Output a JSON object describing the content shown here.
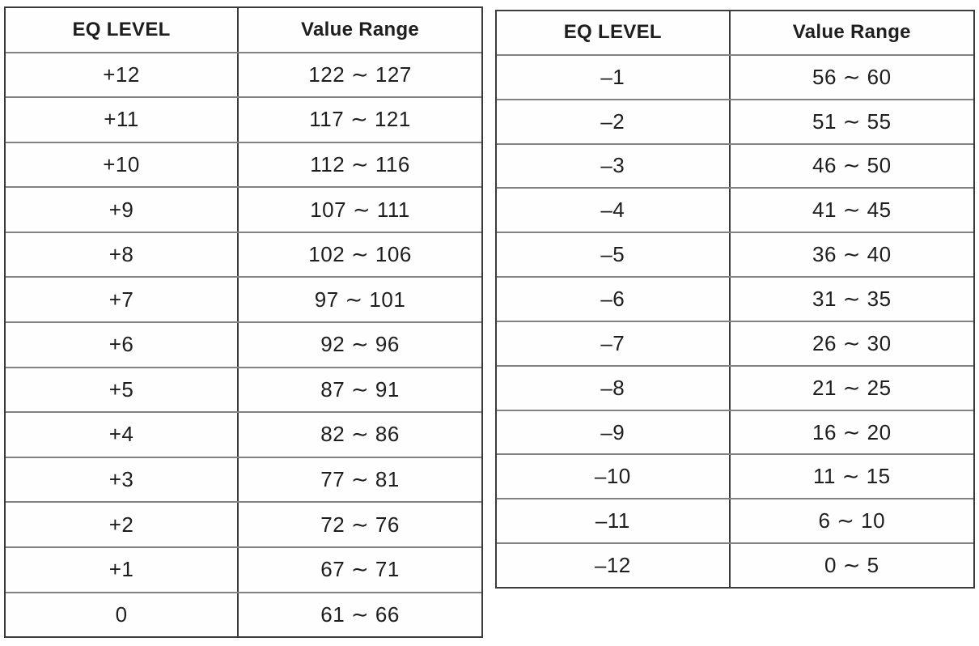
{
  "document": {
    "kind": "eq-level-value-range-tables"
  },
  "colors": {
    "background": "#ffffff",
    "outer_border": "#3c3c3c",
    "row_line": "#828282",
    "text": "#1e1e1e"
  },
  "tables": {
    "left": {
      "headers": {
        "level": "EQ LEVEL",
        "range": "Value Range"
      },
      "rows": [
        {
          "level": "+12",
          "range": "122 ∼ 127"
        },
        {
          "level": "+11",
          "range": "117 ∼ 121"
        },
        {
          "level": "+10",
          "range": "112 ∼ 116"
        },
        {
          "level": "+9",
          "range": "107 ∼ 111"
        },
        {
          "level": "+8",
          "range": "102 ∼ 106"
        },
        {
          "level": "+7",
          "range": "97 ∼ 101"
        },
        {
          "level": "+6",
          "range": "92 ∼ 96"
        },
        {
          "level": "+5",
          "range": "87 ∼ 91"
        },
        {
          "level": "+4",
          "range": "82 ∼ 86"
        },
        {
          "level": "+3",
          "range": "77 ∼ 81"
        },
        {
          "level": "+2",
          "range": "72 ∼ 76"
        },
        {
          "level": "+1",
          "range": "67 ∼ 71"
        },
        {
          "level": "0",
          "range": "61 ∼ 66"
        }
      ]
    },
    "right": {
      "headers": {
        "level": "EQ LEVEL",
        "range": "Value Range"
      },
      "rows": [
        {
          "level": "–1",
          "range": "56 ∼ 60"
        },
        {
          "level": "–2",
          "range": "51 ∼ 55"
        },
        {
          "level": "–3",
          "range": "46 ∼ 50"
        },
        {
          "level": "–4",
          "range": "41 ∼ 45"
        },
        {
          "level": "–5",
          "range": "36 ∼ 40"
        },
        {
          "level": "–6",
          "range": "31 ∼ 35"
        },
        {
          "level": "–7",
          "range": "26 ∼ 30"
        },
        {
          "level": "–8",
          "range": "21 ∼ 25"
        },
        {
          "level": "–9",
          "range": "16 ∼ 20"
        },
        {
          "level": "–10",
          "range": "11 ∼ 15"
        },
        {
          "level": "–11",
          "range": "6 ∼ 10"
        },
        {
          "level": "–12",
          "range": "0 ∼ 5"
        }
      ]
    }
  }
}
